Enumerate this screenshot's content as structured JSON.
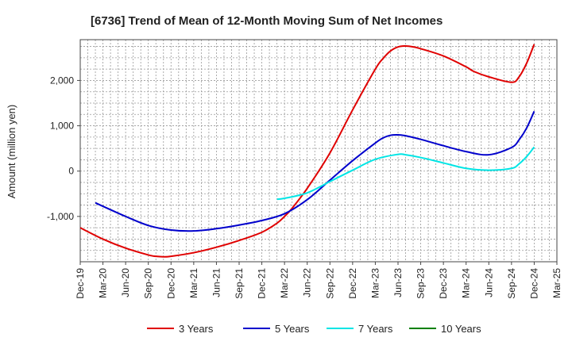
{
  "chart_data": {
    "type": "line",
    "title": "[6736]  Trend of Mean of 12-Month Moving Sum of Net Incomes",
    "xlabel": "",
    "ylabel": "Amount (million yen)",
    "ylim": [
      -2000,
      2900
    ],
    "yticks": [
      -1000,
      0,
      1000,
      2000
    ],
    "ytick_labels": [
      "-1,000",
      "0",
      "1,000",
      "2,000"
    ],
    "xlim": [
      "2019-12",
      "2025-03"
    ],
    "x_tick_labels": [
      "Dec-19",
      "Mar-20",
      "Jun-20",
      "Sep-20",
      "Dec-20",
      "Mar-21",
      "Jun-21",
      "Sep-21",
      "Dec-21",
      "Mar-22",
      "Jun-22",
      "Sep-22",
      "Dec-22",
      "Mar-23",
      "Jun-23",
      "Sep-23",
      "Dec-23",
      "Mar-24",
      "Jun-24",
      "Sep-24",
      "Dec-24",
      "Mar-25"
    ],
    "grid": true,
    "legend_position": "bottom",
    "series": [
      {
        "name": "3 Years",
        "color": "#e00000",
        "x": [
          "2019-12",
          "2020-03",
          "2020-06",
          "2020-09",
          "2020-10",
          "2020-11",
          "2020-12",
          "2021-03",
          "2021-06",
          "2021-09",
          "2021-12",
          "2022-02",
          "2022-03",
          "2022-04",
          "2022-06",
          "2022-09",
          "2022-12",
          "2023-03",
          "2023-04",
          "2023-05",
          "2023-06",
          "2023-07",
          "2023-08",
          "2023-09",
          "2023-12",
          "2024-03",
          "2024-04",
          "2024-06",
          "2024-09",
          "2024-10",
          "2024-11",
          "2024-12"
        ],
        "values": [
          -1250,
          -1500,
          -1700,
          -1850,
          -1880,
          -1890,
          -1880,
          -1800,
          -1680,
          -1530,
          -1350,
          -1150,
          -1000,
          -820,
          -380,
          400,
          1350,
          2250,
          2480,
          2650,
          2740,
          2760,
          2740,
          2700,
          2540,
          2300,
          2200,
          2080,
          1960,
          2080,
          2380,
          2800
        ]
      },
      {
        "name": "5 Years",
        "color": "#0000cc",
        "x": [
          "2020-02",
          "2020-06",
          "2020-09",
          "2020-12",
          "2021-03",
          "2021-06",
          "2021-09",
          "2021-12",
          "2022-03",
          "2022-06",
          "2022-09",
          "2022-12",
          "2023-03",
          "2023-04",
          "2023-05",
          "2023-06",
          "2023-07",
          "2023-09",
          "2023-12",
          "2024-03",
          "2024-06",
          "2024-09",
          "2024-10",
          "2024-11",
          "2024-12"
        ],
        "values": [
          -700,
          -1000,
          -1200,
          -1300,
          -1320,
          -1270,
          -1190,
          -1090,
          -940,
          -630,
          -200,
          230,
          620,
          730,
          790,
          800,
          780,
          700,
          560,
          430,
          360,
          520,
          690,
          950,
          1320
        ]
      },
      {
        "name": "7 Years",
        "color": "#00e5e5",
        "x": [
          "2022-02",
          "2022-03",
          "2022-06",
          "2022-09",
          "2022-12",
          "2023-03",
          "2023-06",
          "2023-07",
          "2023-09",
          "2023-12",
          "2024-03",
          "2024-06",
          "2024-09",
          "2024-10",
          "2024-11",
          "2024-12"
        ],
        "values": [
          -620,
          -600,
          -480,
          -230,
          20,
          260,
          370,
          360,
          300,
          180,
          60,
          20,
          60,
          160,
          320,
          530
        ]
      },
      {
        "name": "10 Years",
        "color": "#008000",
        "x": [],
        "values": []
      }
    ]
  }
}
